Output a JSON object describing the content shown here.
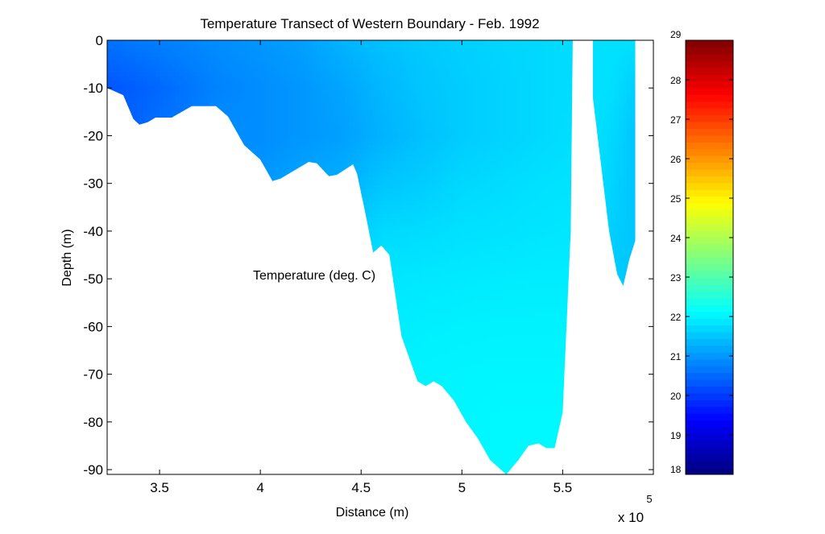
{
  "chart_data": {
    "type": "heatmap",
    "subtype": "filled-contour transect",
    "title": "Temperature Transect of Western Boundary - Feb. 1992",
    "xlabel": "Distance (m)",
    "ylabel": "Depth (m)",
    "annotation": "Temperature (deg. C)",
    "x_exponent_label": "x 10",
    "x_exponent_power": "5",
    "x_scale_factor": 100000,
    "xlim": [
      3.24,
      5.95
    ],
    "ylim": [
      -91,
      0
    ],
    "x_ticks": [
      3.5,
      4,
      4.5,
      5,
      5.5
    ],
    "x_tick_labels": [
      "3.5",
      "4",
      "4.5",
      "5",
      "5.5"
    ],
    "y_ticks": [
      0,
      -10,
      -20,
      -30,
      -40,
      -50,
      -60,
      -70,
      -80,
      -90
    ],
    "y_tick_labels": [
      "0",
      "-10",
      "-20",
      "-30",
      "-40",
      "-50",
      "-60",
      "-70",
      "-80",
      "-90"
    ],
    "grid": false,
    "colormap": "jet",
    "colorbar": {
      "min": 18,
      "max": 29,
      "ticks": [
        18,
        19,
        20,
        21,
        22,
        23,
        24,
        25,
        26,
        27,
        28,
        29
      ],
      "tick_labels": [
        "18",
        "19",
        "20",
        "21",
        "22",
        "23",
        "24",
        "25",
        "26",
        "27",
        "28",
        "29"
      ],
      "placement": "right"
    },
    "bottom_profile": [
      [
        3.24,
        -10
      ],
      [
        3.32,
        -11.5
      ],
      [
        3.37,
        -16.5
      ],
      [
        3.4,
        -17.7
      ],
      [
        3.44,
        -17.2
      ],
      [
        3.48,
        -16.2
      ],
      [
        3.56,
        -16.2
      ],
      [
        3.66,
        -13.8
      ],
      [
        3.78,
        -13.8
      ],
      [
        3.84,
        -16
      ],
      [
        3.92,
        -22
      ],
      [
        4.0,
        -25
      ],
      [
        4.06,
        -29.5
      ],
      [
        4.1,
        -29
      ],
      [
        4.16,
        -27.5
      ],
      [
        4.24,
        -25.5
      ],
      [
        4.28,
        -25.8
      ],
      [
        4.34,
        -28.5
      ],
      [
        4.38,
        -28.2
      ],
      [
        4.46,
        -26
      ],
      [
        4.48,
        -28
      ],
      [
        4.52,
        -36
      ],
      [
        4.56,
        -44.5
      ],
      [
        4.6,
        -43
      ],
      [
        4.64,
        -45
      ],
      [
        4.7,
        -62
      ],
      [
        4.78,
        -71.5
      ],
      [
        4.82,
        -72.5
      ],
      [
        4.86,
        -71.5
      ],
      [
        4.9,
        -72.5
      ],
      [
        4.96,
        -75.5
      ],
      [
        5.02,
        -80
      ],
      [
        5.08,
        -83.5
      ],
      [
        5.14,
        -88
      ],
      [
        5.22,
        -91
      ],
      [
        5.28,
        -88
      ],
      [
        5.33,
        -85
      ],
      [
        5.38,
        -84.5
      ],
      [
        5.42,
        -85.5
      ],
      [
        5.46,
        -85.5
      ],
      [
        5.5,
        -78
      ],
      [
        5.54,
        -40
      ],
      [
        5.55,
        0
      ]
    ],
    "eastern_segment": [
      [
        5.65,
        0
      ],
      [
        5.65,
        -12
      ],
      [
        5.73,
        -40
      ],
      [
        5.77,
        -49
      ],
      [
        5.8,
        -51.5
      ],
      [
        5.83,
        -46
      ],
      [
        5.86,
        -42
      ],
      [
        5.86,
        0
      ]
    ],
    "temperature_field": {
      "description": "temperature (deg. C) sampled at nodes; x in units of 10^5 m, depth in m",
      "x": [
        3.24,
        3.4,
        3.6,
        3.8,
        4.0,
        4.2,
        4.4,
        4.6,
        4.8,
        5.0,
        5.2,
        5.4,
        5.55,
        5.65,
        5.75,
        5.86
      ],
      "depth": [
        0,
        -10,
        -20,
        -30,
        -40,
        -50,
        -60,
        -70,
        -80,
        -91
      ],
      "values": [
        [
          20.6,
          20.7,
          20.8,
          20.9,
          21.0,
          21.1,
          21.3,
          21.45,
          21.55,
          21.62,
          21.68,
          21.72,
          21.75,
          21.8,
          21.8,
          21.8
        ],
        [
          20.3,
          20.4,
          20.6,
          20.8,
          20.9,
          21.0,
          21.15,
          21.35,
          21.5,
          21.58,
          21.65,
          21.72,
          21.75,
          21.8,
          21.78,
          21.6
        ],
        [
          20.5,
          20.5,
          20.7,
          20.9,
          20.9,
          21.0,
          21.1,
          21.3,
          21.45,
          21.58,
          21.65,
          21.72,
          21.78,
          21.8,
          21.7,
          21.5
        ],
        [
          20.6,
          20.6,
          20.8,
          20.9,
          21.0,
          21.15,
          21.25,
          21.5,
          21.58,
          21.7,
          21.75,
          21.8,
          21.82,
          21.8,
          21.65,
          21.5
        ],
        [
          20.6,
          20.6,
          20.8,
          20.9,
          21.0,
          21.2,
          21.5,
          21.72,
          21.75,
          21.8,
          21.82,
          21.85,
          21.87,
          21.8,
          21.6,
          21.5
        ],
        [
          20.6,
          20.6,
          20.8,
          20.9,
          21.0,
          21.2,
          21.6,
          21.85,
          21.88,
          21.9,
          21.92,
          21.93,
          21.93,
          21.8,
          21.6,
          21.5
        ],
        [
          20.6,
          20.6,
          20.8,
          20.9,
          21.0,
          21.2,
          21.6,
          21.92,
          21.95,
          21.97,
          21.98,
          21.98,
          21.98,
          21.8,
          21.6,
          21.5
        ],
        [
          20.6,
          20.6,
          20.8,
          20.9,
          21.0,
          21.2,
          21.6,
          21.95,
          22.0,
          22.02,
          22.03,
          22.03,
          22.03,
          21.8,
          21.6,
          21.5
        ],
        [
          20.6,
          20.6,
          20.8,
          20.9,
          21.0,
          21.2,
          21.6,
          21.95,
          22.0,
          22.03,
          22.05,
          22.05,
          22.05,
          21.8,
          21.6,
          21.5
        ],
        [
          20.6,
          20.6,
          20.8,
          20.9,
          21.0,
          21.2,
          21.6,
          21.95,
          22.0,
          22.03,
          22.05,
          22.05,
          22.05,
          21.8,
          21.6,
          21.5
        ]
      ]
    }
  }
}
